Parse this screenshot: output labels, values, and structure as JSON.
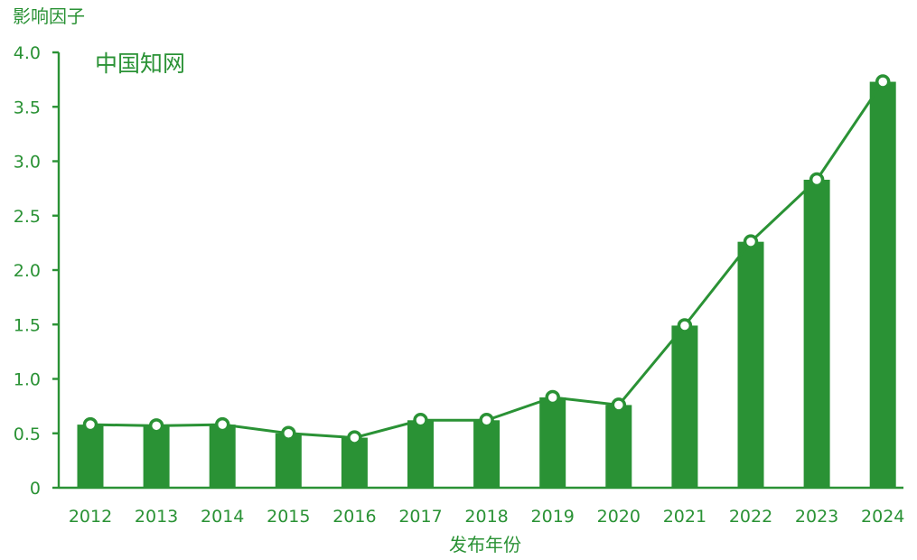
{
  "watermark": "中国知网",
  "colors": {
    "primary": "#2a9235",
    "background": "#ffffff"
  },
  "chart_data": {
    "type": "bar",
    "overlay": "line",
    "title": "",
    "xlabel": "发布年份",
    "ylabel": "影响因子",
    "categories": [
      "2012",
      "2013",
      "2014",
      "2015",
      "2016",
      "2017",
      "2018",
      "2019",
      "2020",
      "2021",
      "2022",
      "2023",
      "2024"
    ],
    "values": [
      0.58,
      0.57,
      0.58,
      0.5,
      0.46,
      0.62,
      0.62,
      0.83,
      0.76,
      1.49,
      2.26,
      2.83,
      3.73
    ],
    "ylim": [
      0,
      4.0
    ],
    "yticks": [
      0,
      0.5,
      1.0,
      1.5,
      2.0,
      2.5,
      3.0,
      3.5,
      4.0
    ],
    "ytick_labels": [
      "0",
      "0.5",
      "1.0",
      "1.5",
      "2.0",
      "2.5",
      "3.0",
      "3.5",
      "4.0"
    ],
    "grid": false,
    "legend": "none"
  }
}
